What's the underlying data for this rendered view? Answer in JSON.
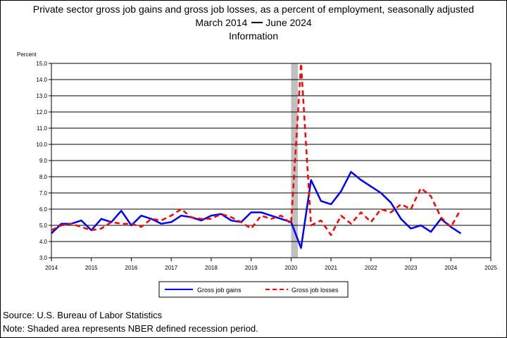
{
  "header": {
    "title": "Private sector gross job gains and gross job losses, as a percent of employment, seasonally adjusted",
    "period_start": "March 2014",
    "period_end": "June 2024",
    "industry": "Information"
  },
  "footer": {
    "source": "Source: U.S. Bureau of Labor Statistics",
    "note": "Note: Shaded area represents NBER defined recession period."
  },
  "chart_data": {
    "type": "line",
    "ylabel": "Percent",
    "xlabel": "",
    "xlim": [
      2014,
      2025
    ],
    "ylim": [
      3.0,
      15.0
    ],
    "x_ticks": [
      2014,
      2015,
      2016,
      2017,
      2018,
      2019,
      2020,
      2021,
      2022,
      2023,
      2024,
      2025
    ],
    "y_ticks": [
      "3.0",
      "4.0",
      "5.0",
      "6.0",
      "7.0",
      "8.0",
      "9.0",
      "10.0",
      "11.0",
      "12.0",
      "13.0",
      "14.0",
      "15.0"
    ],
    "grid": true,
    "recession": {
      "start": 2020.0,
      "end": 2020.17
    },
    "legend_position": "bottom",
    "x": [
      2014.0,
      2014.25,
      2014.5,
      2014.75,
      2015.0,
      2015.25,
      2015.5,
      2015.75,
      2016.0,
      2016.25,
      2016.5,
      2016.75,
      2017.0,
      2017.25,
      2017.5,
      2017.75,
      2018.0,
      2018.25,
      2018.5,
      2018.75,
      2019.0,
      2019.25,
      2019.5,
      2019.75,
      2020.0,
      2020.25,
      2020.5,
      2020.75,
      2021.0,
      2021.25,
      2021.5,
      2021.75,
      2022.0,
      2022.25,
      2022.5,
      2022.75,
      2023.0,
      2023.25,
      2023.5,
      2023.75,
      2024.0,
      2024.25
    ],
    "series": [
      {
        "name": "Gross job gains",
        "color": "#0000ff",
        "dash": "solid",
        "values": [
          4.5,
          5.1,
          5.1,
          5.3,
          4.7,
          5.4,
          5.2,
          5.9,
          5.0,
          5.6,
          5.4,
          5.1,
          5.2,
          5.6,
          5.5,
          5.3,
          5.6,
          5.7,
          5.3,
          5.2,
          5.8,
          5.8,
          5.6,
          5.4,
          5.2,
          3.6,
          7.8,
          6.5,
          6.3,
          7.1,
          8.3,
          7.8,
          7.4,
          7.0,
          6.4,
          5.4,
          4.8,
          5.0,
          4.6,
          5.4,
          4.9,
          4.5
        ]
      },
      {
        "name": "Gross job losses",
        "color": "#ff0000",
        "dash": "dashed",
        "values": [
          4.7,
          5.0,
          5.1,
          4.9,
          4.7,
          4.8,
          5.2,
          5.1,
          5.1,
          4.9,
          5.4,
          5.3,
          5.6,
          6.0,
          5.5,
          5.4,
          5.4,
          5.7,
          5.5,
          5.2,
          4.8,
          5.6,
          5.4,
          5.6,
          5.1,
          15.0,
          5.0,
          5.3,
          4.4,
          5.6,
          5.1,
          5.8,
          5.2,
          6.0,
          5.8,
          6.3,
          6.0,
          7.3,
          6.8,
          5.5,
          4.9,
          6.0
        ]
      }
    ]
  }
}
